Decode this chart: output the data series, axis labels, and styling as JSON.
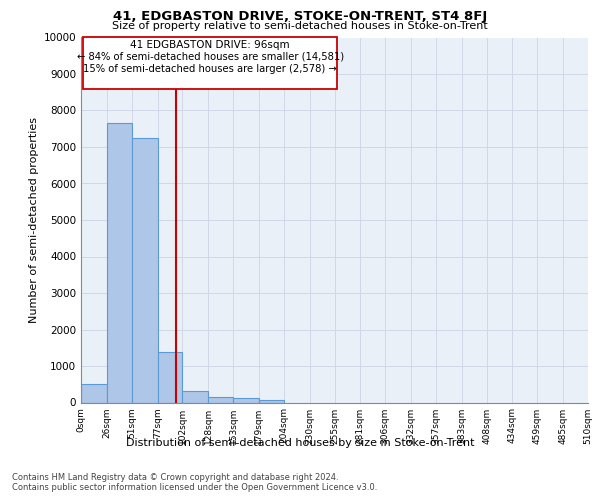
{
  "title": "41, EDGBASTON DRIVE, STOKE-ON-TRENT, ST4 8FJ",
  "subtitle": "Size of property relative to semi-detached houses in Stoke-on-Trent",
  "xlabel": "Distribution of semi-detached houses by size in Stoke-on-Trent",
  "ylabel": "Number of semi-detached properties",
  "footer_line1": "Contains HM Land Registry data © Crown copyright and database right 2024.",
  "footer_line2": "Contains public sector information licensed under the Open Government Licence v3.0.",
  "annotation_title": "41 EDGBASTON DRIVE: 96sqm",
  "annotation_line1": "← 84% of semi-detached houses are smaller (14,581)",
  "annotation_line2": "15% of semi-detached houses are larger (2,578) →",
  "property_size": 96,
  "bar_color": "#aec6e8",
  "bar_edge_color": "#5b9bd5",
  "vline_color": "#cc0000",
  "annotation_box_edge": "#cc0000",
  "ylim": [
    0,
    10000
  ],
  "yticks": [
    0,
    1000,
    2000,
    3000,
    4000,
    5000,
    6000,
    7000,
    8000,
    9000,
    10000
  ],
  "bin_edges": [
    0,
    26,
    51,
    77,
    102,
    128,
    153,
    179,
    204,
    230,
    255,
    281,
    306,
    332,
    357,
    383,
    408,
    434,
    459,
    485,
    510
  ],
  "bin_labels": [
    "0sqm",
    "26sqm",
    "51sqm",
    "77sqm",
    "102sqm",
    "128sqm",
    "153sqm",
    "179sqm",
    "204sqm",
    "230sqm",
    "255sqm",
    "281sqm",
    "306sqm",
    "332sqm",
    "357sqm",
    "383sqm",
    "408sqm",
    "434sqm",
    "459sqm",
    "485sqm",
    "510sqm"
  ],
  "bar_heights": [
    500,
    7650,
    7250,
    1370,
    320,
    150,
    110,
    70,
    0,
    0,
    0,
    0,
    0,
    0,
    0,
    0,
    0,
    0,
    0,
    0
  ],
  "grid_color": "#d0d8e8",
  "background_color": "#eaf0f8"
}
